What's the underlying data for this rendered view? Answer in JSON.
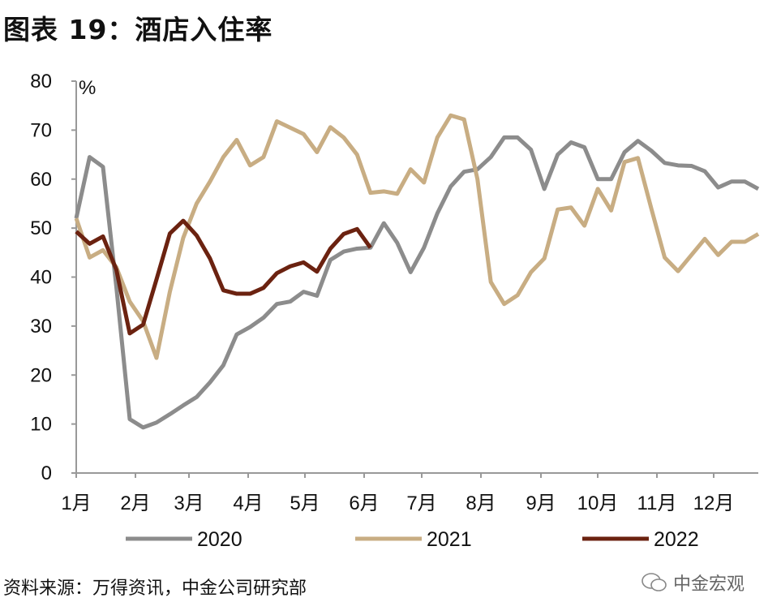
{
  "title": "图表 19：酒店入住率",
  "source": "资料来源：万得资讯，中金公司研究部",
  "watermark": "中金宏观",
  "chart_data": {
    "type": "line",
    "title": "图表 19：酒店入住率",
    "ylabel": "%",
    "xlabel": "",
    "ylim": [
      0,
      80
    ],
    "yticks": [
      "0",
      "10",
      "20",
      "30",
      "40",
      "50",
      "60",
      "70",
      "80"
    ],
    "xticks": [
      "1月",
      "2月",
      "3月",
      "4月",
      "5月",
      "6月",
      "7月",
      "8月",
      "9月",
      "10月",
      "11月",
      "12月"
    ],
    "x_unit": "week index (0-51)",
    "legend_position": "bottom",
    "grid": false,
    "series": [
      {
        "name": "2020",
        "color": "#8c8c8c",
        "values": [
          52,
          64.5,
          62.5,
          38,
          11,
          9.3,
          10.3,
          12,
          13.8,
          15.5,
          18.5,
          22,
          28.3,
          29.8,
          31.7,
          34.5,
          35,
          37,
          36.2,
          43.5,
          45.2,
          45.8,
          46,
          51,
          47,
          41,
          46,
          53,
          58.5,
          61.5,
          62,
          64.5,
          68.5,
          68.5,
          66,
          58,
          65,
          67.5,
          66.5,
          60,
          60,
          65.5,
          67.8,
          65.8,
          63.3,
          62.8,
          62.7,
          61.6,
          58.3,
          59.5,
          59.5,
          58
        ]
      },
      {
        "name": "2021",
        "color": "#c8ad83",
        "values": [
          52,
          44,
          45.5,
          42,
          35,
          31,
          23.5,
          37,
          48,
          55,
          59.5,
          64.5,
          68,
          62.8,
          64.5,
          71.8,
          70.5,
          69.2,
          65.5,
          70.6,
          68.5,
          65,
          57.2,
          57.5,
          57,
          62,
          59.3,
          68.5,
          73,
          72.2,
          60,
          39,
          34.5,
          36.3,
          41,
          43.8,
          53.8,
          54.2,
          50.5,
          58,
          53.6,
          63.5,
          64.3,
          54,
          44,
          41.2,
          44.5,
          47.8,
          44.5,
          47.2,
          47.2,
          48.8
        ]
      },
      {
        "name": "2022",
        "color": "#6b2210",
        "values": [
          49.3,
          46.8,
          48.3,
          41.5,
          28.5,
          30.3,
          39.5,
          48.9,
          51.5,
          48.5,
          43.8,
          37.3,
          36.6,
          36.6,
          37.8,
          40.8,
          42.2,
          43,
          41.1,
          45.8,
          48.8,
          49.8,
          46
        ]
      }
    ]
  }
}
